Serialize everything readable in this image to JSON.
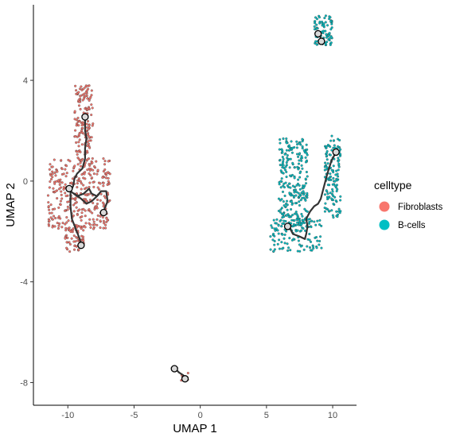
{
  "chart_data": {
    "type": "scatter",
    "xlabel": "UMAP 1",
    "ylabel": "UMAP 2",
    "xlim": [
      -12.6,
      11.8
    ],
    "ylim": [
      -8.9,
      7.0
    ],
    "x_ticks": [
      -10,
      -5,
      0,
      5,
      10
    ],
    "y_ticks": [
      -8,
      -4,
      0,
      4
    ],
    "grid": false,
    "legend": {
      "title": "celltype",
      "placement": "right",
      "entries": [
        {
          "label": "Fibroblasts",
          "color": "#F8766D"
        },
        {
          "label": "B-cells",
          "color": "#00BFC4"
        }
      ]
    },
    "series": [
      {
        "name": "Fibroblasts",
        "color": "#F8766D",
        "clusters": [
          {
            "id": "fibro-top",
            "x_range": [
              -9.5,
              -8.1
            ],
            "y_range": [
              0.8,
              3.8
            ],
            "n": 150
          },
          {
            "id": "fibro-middle",
            "x_range": [
              -11.5,
              -6.8
            ],
            "y_range": [
              -1.9,
              0.9
            ],
            "n": 330
          },
          {
            "id": "fibro-bottom",
            "x_range": [
              -10.2,
              -8.7
            ],
            "y_range": [
              -2.8,
              -1.8
            ],
            "n": 55
          },
          {
            "id": "fibro-small",
            "x_range": [
              -1.6,
              -0.9
            ],
            "y_range": [
              -8.0,
              -7.6
            ],
            "n": 8
          }
        ]
      },
      {
        "name": "B-cells",
        "color": "#00BFC4",
        "clusters": [
          {
            "id": "bcell-top",
            "x_range": [
              8.6,
              10.0
            ],
            "y_range": [
              5.4,
              6.6
            ],
            "n": 85
          },
          {
            "id": "bcell-left",
            "x_range": [
              5.9,
              8.1
            ],
            "y_range": [
              -1.8,
              1.7
            ],
            "n": 260
          },
          {
            "id": "bcell-right",
            "x_range": [
              9.4,
              10.6
            ],
            "y_range": [
              -1.5,
              1.8
            ],
            "n": 140
          },
          {
            "id": "bcell-bottom",
            "x_range": [
              5.3,
              9.2
            ],
            "y_range": [
              -2.8,
              -1.5
            ],
            "n": 120
          }
        ]
      }
    ],
    "trajectories": [
      {
        "name": "fibroblast-trajectory",
        "points": [
          [
            -9.0,
            -2.55
          ],
          [
            -9.1,
            -2.3
          ],
          [
            -9.4,
            -1.9
          ],
          [
            -9.7,
            -1.5
          ],
          [
            -9.8,
            -1.0
          ],
          [
            -9.8,
            -0.4
          ],
          [
            -9.6,
            -0.2
          ],
          [
            -9.5,
            0.1
          ],
          [
            -9.3,
            0.3
          ],
          [
            -8.9,
            0.5
          ],
          [
            -8.7,
            0.9
          ],
          [
            -8.7,
            1.3
          ],
          [
            -8.6,
            1.7
          ],
          [
            -8.7,
            2.0
          ],
          [
            -8.7,
            2.5
          ]
        ]
      },
      {
        "name": "fibroblast-branch",
        "points": [
          [
            -9.8,
            -0.4
          ],
          [
            -9.3,
            -0.6
          ],
          [
            -8.8,
            -0.5
          ],
          [
            -8.4,
            -0.3
          ],
          [
            -8.2,
            -0.5
          ],
          [
            -7.8,
            -0.6
          ],
          [
            -7.5,
            -0.4
          ],
          [
            -7.1,
            -0.4
          ],
          [
            -7.0,
            -0.8
          ],
          [
            -7.3,
            -1.2
          ]
        ]
      },
      {
        "name": "fibroblast-branch-2",
        "points": [
          [
            -7.8,
            -0.6
          ],
          [
            -8.2,
            -0.8
          ],
          [
            -8.6,
            -0.9
          ],
          [
            -9.0,
            -0.7
          ],
          [
            -9.5,
            -0.5
          ]
        ]
      },
      {
        "name": "small-trajectory",
        "points": [
          [
            -1.9,
            -7.45
          ],
          [
            -1.6,
            -7.6
          ],
          [
            -1.3,
            -7.7
          ],
          [
            -1.15,
            -7.8
          ]
        ]
      },
      {
        "name": "bcell-top-trajectory",
        "points": [
          [
            8.95,
            5.9
          ],
          [
            9.05,
            5.75
          ],
          [
            9.15,
            5.6
          ]
        ]
      },
      {
        "name": "bcell-trajectory",
        "points": [
          [
            6.6,
            -1.8
          ],
          [
            6.8,
            -1.9
          ],
          [
            7.0,
            -2.1
          ],
          [
            7.5,
            -2.2
          ],
          [
            7.9,
            -2.3
          ],
          [
            8.0,
            -2.1
          ],
          [
            8.1,
            -1.8
          ],
          [
            8.0,
            -1.5
          ],
          [
            8.3,
            -1.2
          ],
          [
            8.6,
            -1.0
          ],
          [
            8.9,
            -0.9
          ],
          [
            9.1,
            -0.7
          ],
          [
            9.3,
            -0.3
          ],
          [
            9.6,
            0.3
          ],
          [
            9.9,
            0.8
          ],
          [
            10.2,
            1.1
          ]
        ]
      }
    ],
    "milestones": [
      [
        -8.7,
        2.55
      ],
      [
        -9.9,
        -0.3
      ],
      [
        -7.3,
        -1.25
      ],
      [
        -9.0,
        -2.55
      ],
      [
        -1.95,
        -7.45
      ],
      [
        -1.15,
        -7.85
      ],
      [
        8.9,
        5.85
      ],
      [
        9.15,
        5.55
      ],
      [
        10.25,
        1.15
      ],
      [
        6.6,
        -1.8
      ]
    ]
  }
}
